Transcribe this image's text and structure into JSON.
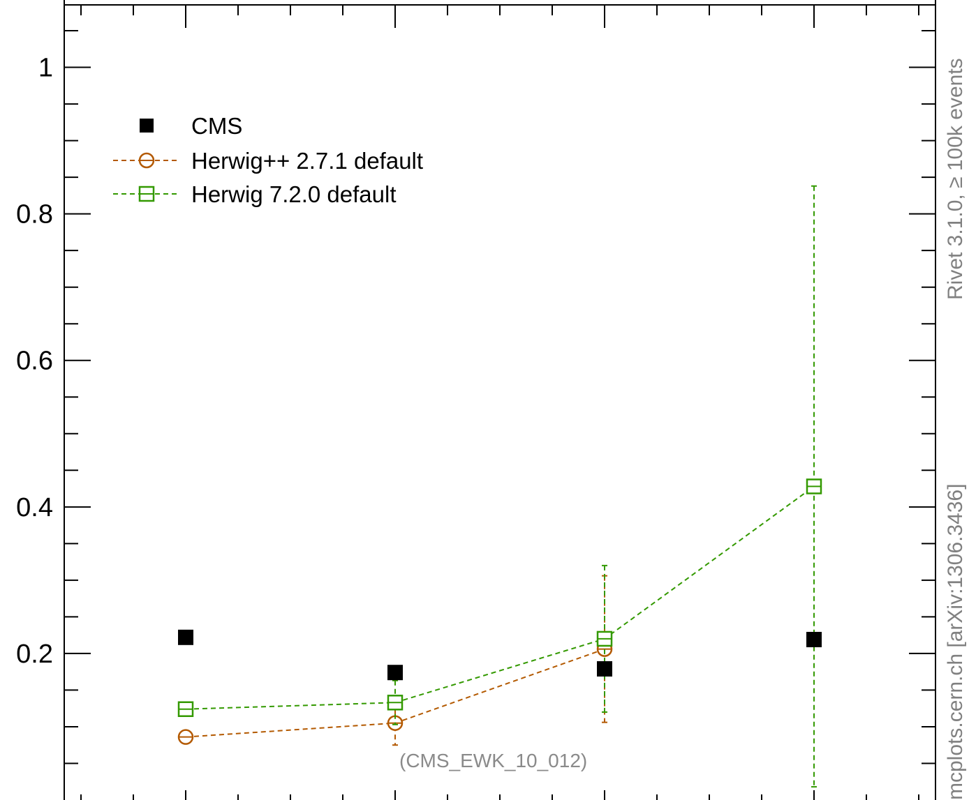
{
  "chart_data": {
    "type": "scatter",
    "title": "",
    "xlabel": "",
    "ylabel": "",
    "x": [
      1,
      2,
      3,
      4
    ],
    "xlim": [
      0.42,
      4.58
    ],
    "ylim": [
      0,
      1.13
    ],
    "y_ticks": [
      {
        "value": 0.2,
        "label": "0.2"
      },
      {
        "value": 0.4,
        "label": "0.4"
      },
      {
        "value": 0.6,
        "label": "0.6"
      },
      {
        "value": 0.8,
        "label": "0.8"
      },
      {
        "value": 1.0,
        "label": "1"
      }
    ],
    "grid": false,
    "legend_position": "top-left",
    "series": [
      {
        "name": "CMS",
        "marker": "filled-square",
        "color": "#000000",
        "values": [
          0.222,
          0.174,
          0.179,
          0.219
        ],
        "err": [
          0,
          0,
          0,
          0
        ]
      },
      {
        "name": "Herwig++ 2.7.1 default",
        "marker": "open-circle",
        "color": "#b35900",
        "values": [
          0.086,
          0.105,
          0.206,
          null
        ],
        "err": [
          0.005,
          0.03,
          0.1,
          0
        ]
      },
      {
        "name": "Herwig 7.2.0 default",
        "marker": "open-square",
        "color": "#339900",
        "values": [
          0.124,
          0.133,
          0.22,
          0.428
        ],
        "err": [
          0.005,
          0.03,
          0.1,
          0.41
        ]
      }
    ],
    "annotations": [
      {
        "text": "(CMS_EWK_10_012)"
      },
      {
        "text": "Rivet 3.1.0, ≥ 100k events"
      },
      {
        "text": "mcplots.cern.ch [arXiv:1306.3436]"
      }
    ]
  }
}
